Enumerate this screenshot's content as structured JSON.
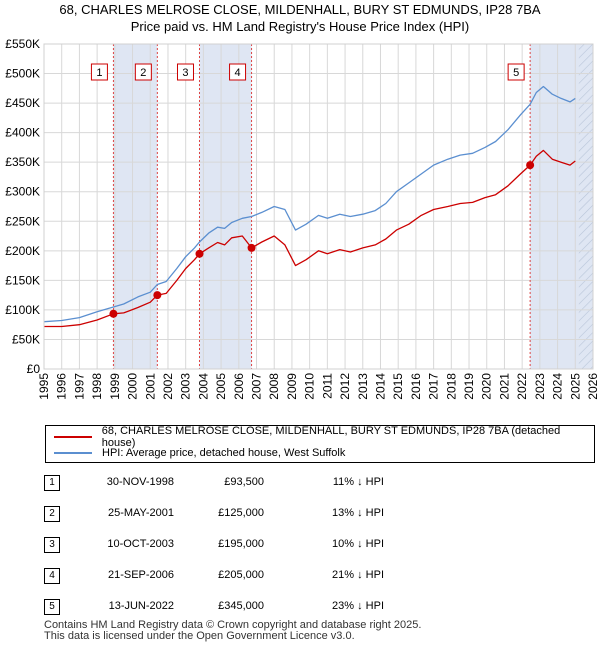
{
  "title_line1": "68, CHARLES MELROSE CLOSE, MILDENHALL, BURY ST EDMUNDS, IP28 7BA",
  "title_line2": "Price paid vs. HM Land Registry's House Price Index (HPI)",
  "chart_data": {
    "type": "line",
    "title": "68, CHARLES MELROSE CLOSE, MILDENHALL, BURY ST EDMUNDS, IP28 7BA",
    "subtitle": "Price paid vs. HM Land Registry's House Price Index (HPI)",
    "xlim": [
      1995,
      2026
    ],
    "ylim": [
      0,
      550000
    ],
    "x_ticks": [
      1995,
      1996,
      1997,
      1998,
      1999,
      2000,
      2001,
      2002,
      2003,
      2004,
      2005,
      2006,
      2007,
      2008,
      2009,
      2010,
      2011,
      2012,
      2013,
      2014,
      2015,
      2016,
      2017,
      2018,
      2019,
      2020,
      2021,
      2022,
      2023,
      2024,
      2025,
      2026
    ],
    "y_ticks": [
      0,
      50000,
      100000,
      150000,
      200000,
      250000,
      300000,
      350000,
      400000,
      450000,
      500000,
      550000
    ],
    "y_tick_labels": [
      "£0",
      "£50K",
      "£100K",
      "£150K",
      "£200K",
      "£250K",
      "£300K",
      "£350K",
      "£400K",
      "£450K",
      "£500K",
      "£550K"
    ],
    "grid": true,
    "shaded_spans": [
      [
        1998.92,
        2001.4
      ],
      [
        2003.78,
        2006.72
      ],
      [
        2022.45,
        2026.0
      ]
    ],
    "hatched_span": [
      2025.2,
      2026.0
    ],
    "series": [
      {
        "name": "68, CHARLES MELROSE CLOSE, MILDENHALL, BURY ST EDMUNDS, IP28 7BA (detached house)",
        "color": "#cc0000",
        "points": [
          [
            1995.0,
            72000
          ],
          [
            1996.0,
            72000
          ],
          [
            1997.0,
            75000
          ],
          [
            1998.0,
            83000
          ],
          [
            1998.92,
            93500
          ],
          [
            1999.5,
            95000
          ],
          [
            2000.3,
            104000
          ],
          [
            2001.0,
            113000
          ],
          [
            2001.4,
            125000
          ],
          [
            2001.9,
            128000
          ],
          [
            2002.5,
            150000
          ],
          [
            2003.0,
            170000
          ],
          [
            2003.5,
            185000
          ],
          [
            2003.78,
            195000
          ],
          [
            2004.3,
            205000
          ],
          [
            2004.8,
            214000
          ],
          [
            2005.2,
            210000
          ],
          [
            2005.6,
            222000
          ],
          [
            2006.2,
            225000
          ],
          [
            2006.72,
            205000
          ],
          [
            2007.3,
            215000
          ],
          [
            2008.0,
            225000
          ],
          [
            2008.6,
            210000
          ],
          [
            2009.2,
            175000
          ],
          [
            2009.8,
            185000
          ],
          [
            2010.5,
            200000
          ],
          [
            2011.0,
            195000
          ],
          [
            2011.7,
            202000
          ],
          [
            2012.3,
            198000
          ],
          [
            2013.0,
            205000
          ],
          [
            2013.7,
            210000
          ],
          [
            2014.3,
            220000
          ],
          [
            2014.9,
            235000
          ],
          [
            2015.6,
            245000
          ],
          [
            2016.3,
            260000
          ],
          [
            2017.0,
            270000
          ],
          [
            2017.8,
            275000
          ],
          [
            2018.5,
            280000
          ],
          [
            2019.2,
            282000
          ],
          [
            2019.9,
            290000
          ],
          [
            2020.5,
            295000
          ],
          [
            2021.2,
            310000
          ],
          [
            2021.9,
            330000
          ],
          [
            2022.45,
            345000
          ],
          [
            2022.8,
            360000
          ],
          [
            2023.2,
            370000
          ],
          [
            2023.7,
            355000
          ],
          [
            2024.2,
            350000
          ],
          [
            2024.7,
            345000
          ],
          [
            2025.0,
            352000
          ]
        ]
      },
      {
        "name": "HPI: Average price, detached house, West Suffolk",
        "color": "#5b8fd0",
        "points": [
          [
            1995.0,
            80000
          ],
          [
            1996.0,
            82000
          ],
          [
            1997.0,
            87000
          ],
          [
            1998.0,
            97000
          ],
          [
            1998.92,
            105000
          ],
          [
            1999.5,
            110000
          ],
          [
            2000.3,
            122000
          ],
          [
            2001.0,
            130000
          ],
          [
            2001.4,
            143000
          ],
          [
            2001.9,
            148000
          ],
          [
            2002.5,
            170000
          ],
          [
            2003.0,
            190000
          ],
          [
            2003.5,
            205000
          ],
          [
            2003.78,
            215000
          ],
          [
            2004.3,
            230000
          ],
          [
            2004.8,
            240000
          ],
          [
            2005.2,
            238000
          ],
          [
            2005.6,
            248000
          ],
          [
            2006.2,
            255000
          ],
          [
            2006.72,
            258000
          ],
          [
            2007.3,
            265000
          ],
          [
            2008.0,
            275000
          ],
          [
            2008.6,
            270000
          ],
          [
            2009.2,
            235000
          ],
          [
            2009.8,
            245000
          ],
          [
            2010.5,
            260000
          ],
          [
            2011.0,
            255000
          ],
          [
            2011.7,
            262000
          ],
          [
            2012.3,
            258000
          ],
          [
            2013.0,
            262000
          ],
          [
            2013.7,
            268000
          ],
          [
            2014.3,
            280000
          ],
          [
            2014.9,
            300000
          ],
          [
            2015.6,
            315000
          ],
          [
            2016.3,
            330000
          ],
          [
            2017.0,
            345000
          ],
          [
            2017.8,
            355000
          ],
          [
            2018.5,
            362000
          ],
          [
            2019.2,
            365000
          ],
          [
            2019.9,
            375000
          ],
          [
            2020.5,
            385000
          ],
          [
            2021.2,
            405000
          ],
          [
            2021.9,
            430000
          ],
          [
            2022.45,
            448000
          ],
          [
            2022.8,
            468000
          ],
          [
            2023.2,
            478000
          ],
          [
            2023.7,
            465000
          ],
          [
            2024.2,
            458000
          ],
          [
            2024.7,
            452000
          ],
          [
            2025.0,
            458000
          ]
        ]
      }
    ],
    "sales": [
      {
        "n": "1",
        "x": 1998.92,
        "y": 93500
      },
      {
        "n": "2",
        "x": 2001.4,
        "y": 125000
      },
      {
        "n": "3",
        "x": 2003.78,
        "y": 195000
      },
      {
        "n": "4",
        "x": 2006.72,
        "y": 205000
      },
      {
        "n": "5",
        "x": 2022.45,
        "y": 345000
      }
    ]
  },
  "legend": {
    "property": "68, CHARLES MELROSE CLOSE, MILDENHALL, BURY ST EDMUNDS, IP28 7BA (detached house)",
    "hpi": "HPI: Average price, detached house, West Suffolk",
    "property_color": "#cc0000",
    "hpi_color": "#5b8fd0"
  },
  "transactions": [
    {
      "num": "1",
      "date": "30-NOV-1998",
      "price": "£93,500",
      "hpi": "11% ↓ HPI"
    },
    {
      "num": "2",
      "date": "25-MAY-2001",
      "price": "£125,000",
      "hpi": "13% ↓ HPI"
    },
    {
      "num": "3",
      "date": "10-OCT-2003",
      "price": "£195,000",
      "hpi": "10% ↓ HPI"
    },
    {
      "num": "4",
      "date": "21-SEP-2006",
      "price": "£205,000",
      "hpi": "21% ↓ HPI"
    },
    {
      "num": "5",
      "date": "13-JUN-2022",
      "price": "£345,000",
      "hpi": "23% ↓ HPI"
    }
  ],
  "footer_line1": "Contains HM Land Registry data © Crown copyright and database right 2025.",
  "footer_line2": "This data is licensed under the Open Government Licence v3.0."
}
